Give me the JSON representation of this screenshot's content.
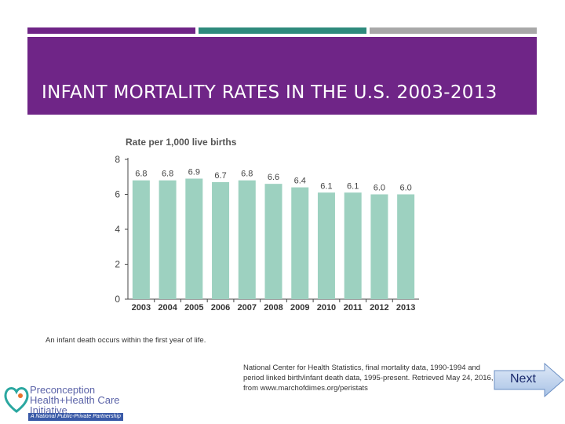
{
  "slide": {
    "title": "INFANT MORTALITY RATES IN THE U.S. 2003-2013",
    "caption": "An infant death occurs within the first year of life.",
    "source": "National Center for Health Statistics, final mortality data, 1990-1994 and period linked birth/infant death data, 1995-present. Retrieved May 24, 2016, from www.marchofdimes.org/peristats",
    "next_label": "Next"
  },
  "logo": {
    "line1": "Preconception",
    "line2": "Health+Health Care Initiative",
    "tagline": "A National Public-Private Partnership"
  },
  "colors": {
    "purple": "#6f2587",
    "teal": "#2e8a7c",
    "gray": "#a8a8a8",
    "bar": "#9dd1c0"
  },
  "chart_data": {
    "type": "bar",
    "title": "Rate per 1,000 live births",
    "xlabel": "",
    "ylabel": "Rate per 1,000 live births",
    "categories": [
      "2003",
      "2004",
      "2005",
      "2006",
      "2007",
      "2008",
      "2009",
      "2010",
      "2011",
      "2012",
      "2013"
    ],
    "values": [
      6.8,
      6.8,
      6.9,
      6.7,
      6.8,
      6.6,
      6.4,
      6.1,
      6.1,
      6.0,
      6.0
    ],
    "value_labels": [
      "6.8",
      "6.8",
      "6.9",
      "6.7",
      "6.8",
      "6.6",
      "6.4",
      "6.1",
      "6.1",
      "6.0",
      "6.0"
    ],
    "ylim": [
      0,
      8
    ],
    "yticks": [
      0,
      2,
      4,
      6,
      8
    ],
    "grid": false
  }
}
